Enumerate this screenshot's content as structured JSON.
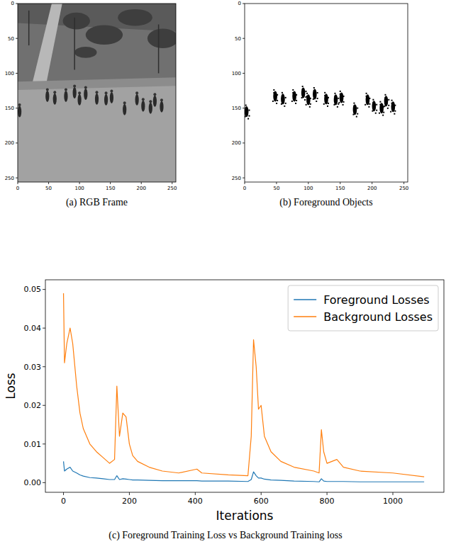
{
  "chart_data": [
    {
      "type": "image",
      "caption": "(a) RGB Frame",
      "xlim": [
        0,
        256
      ],
      "ylim": [
        256,
        0
      ],
      "xticks": [
        0,
        50,
        100,
        150,
        200,
        250
      ],
      "yticks": [
        0,
        50,
        100,
        150,
        200,
        250
      ],
      "grid": false
    },
    {
      "type": "image",
      "caption": "(b) Foreground Objects",
      "xlim": [
        0,
        256
      ],
      "ylim": [
        256,
        0
      ],
      "xticks": [
        0,
        50,
        100,
        150,
        200,
        250
      ],
      "yticks": [
        0,
        50,
        100,
        150,
        200,
        250
      ],
      "grid": false,
      "color": "#000000",
      "x": [
        3,
        48,
        60,
        78,
        92,
        100,
        110,
        128,
        143,
        152,
        173,
        193,
        203,
        215,
        222,
        233
      ],
      "values": [
        155,
        133,
        137,
        133,
        128,
        138,
        130,
        137,
        138,
        135,
        152,
        138,
        147,
        150,
        140,
        148
      ]
    },
    {
      "type": "line",
      "caption": "(c) Foreground Training Loss vs Background Training loss",
      "x_label": "Iterations",
      "y_label": "Loss",
      "x": [
        0,
        3,
        10,
        20,
        28,
        40,
        50,
        60,
        80,
        100,
        120,
        140,
        155,
        162,
        170,
        180,
        190,
        200,
        210,
        225,
        260,
        300,
        350,
        405,
        420,
        500,
        560,
        570,
        577,
        585,
        592,
        600,
        610,
        630,
        660,
        700,
        760,
        776,
        783,
        790,
        800,
        830,
        850,
        900,
        1000,
        1095
      ],
      "series": [
        {
          "name": "Foreground Losses",
          "color": "#1f77b4",
          "values": [
            0.0055,
            0.003,
            0.0035,
            0.004,
            0.003,
            0.0025,
            0.002,
            0.0017,
            0.0013,
            0.0012,
            0.001,
            0.0008,
            0.0008,
            0.0018,
            0.0008,
            0.001,
            0.0009,
            0.0008,
            0.0007,
            0.0007,
            0.0006,
            0.0005,
            0.0005,
            0.0005,
            0.0004,
            0.0004,
            0.0003,
            0.0008,
            0.0028,
            0.0018,
            0.0012,
            0.0012,
            0.0009,
            0.0007,
            0.0006,
            0.0004,
            0.0003,
            0.0002,
            0.001,
            0.0004,
            0.0003,
            0.0003,
            0.0003,
            0.0002,
            0.0002,
            0.0002
          ]
        },
        {
          "name": "Background Losses",
          "color": "#ff7f0e",
          "values": [
            0.049,
            0.031,
            0.036,
            0.04,
            0.036,
            0.025,
            0.018,
            0.014,
            0.01,
            0.008,
            0.0065,
            0.005,
            0.006,
            0.025,
            0.012,
            0.018,
            0.017,
            0.01,
            0.007,
            0.0055,
            0.004,
            0.003,
            0.0025,
            0.0035,
            0.0025,
            0.002,
            0.0018,
            0.012,
            0.037,
            0.03,
            0.019,
            0.02,
            0.012,
            0.008,
            0.0055,
            0.004,
            0.003,
            0.0025,
            0.0137,
            0.008,
            0.005,
            0.006,
            0.004,
            0.003,
            0.0025,
            0.0015
          ]
        }
      ],
      "xlim": [
        -55,
        1155
      ],
      "ylim": [
        -0.0025,
        0.0525
      ],
      "xticks": [
        0,
        200,
        400,
        600,
        800,
        1000
      ],
      "yticks": [
        {
          "value": 0,
          "label": "0.00"
        },
        {
          "value": 0.01,
          "label": "0.01"
        },
        {
          "value": 0.02,
          "label": "0.02"
        },
        {
          "value": 0.03,
          "label": "0.03"
        },
        {
          "value": 0.04,
          "label": "0.04"
        },
        {
          "value": 0.05,
          "label": "0.05"
        }
      ],
      "legend": "upper right",
      "grid": false
    }
  ]
}
